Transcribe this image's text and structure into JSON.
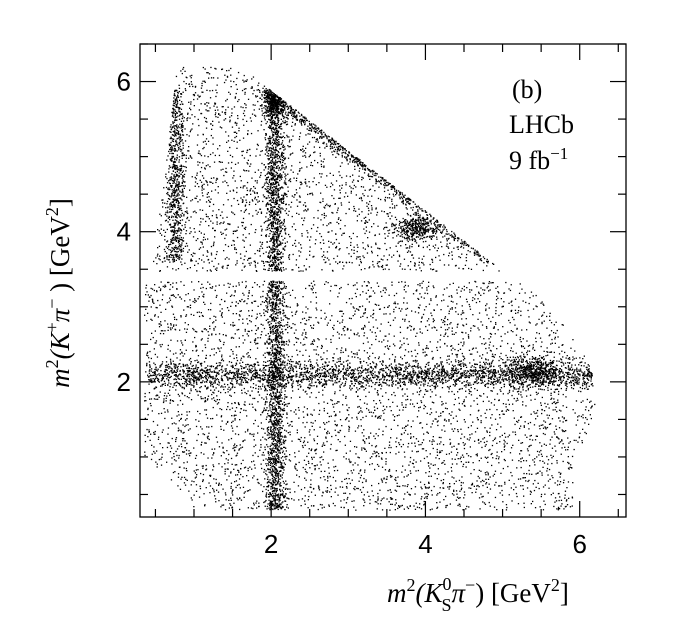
{
  "chart_data": {
    "type": "scatter",
    "annotation_lines": [
      "(b)",
      "LHCb",
      "9 fb"
    ],
    "luminosity_exponent": "−1",
    "xlabel": {
      "m": "m",
      "sq": "2",
      "open": "(K",
      "sup": "0",
      "sub": "S",
      "pi": "π",
      "pisup": "−",
      "close": ") [GeV",
      "unit_sup": "2",
      "end": "]"
    },
    "ylabel": {
      "m": "m",
      "sq": "2",
      "open": "(K",
      "ksup": "+",
      "pi": "π",
      "pisup": "−",
      "close": " ) [GeV",
      "unit_sup": "2",
      "end": "]"
    },
    "xlim": [
      0.3,
      6.6
    ],
    "ylim": [
      0.2,
      6.5
    ],
    "x_major_ticks": [
      2,
      4,
      6
    ],
    "y_major_ticks": [
      2,
      4,
      6
    ],
    "x_tick_labels": [
      "2",
      "4",
      "6"
    ],
    "y_tick_labels": [
      "2",
      "4",
      "6"
    ],
    "minor_tick_step": 0.5,
    "gap_band_y": [
      3.35,
      3.48
    ],
    "point_color": "#000000",
    "grid": false
  }
}
